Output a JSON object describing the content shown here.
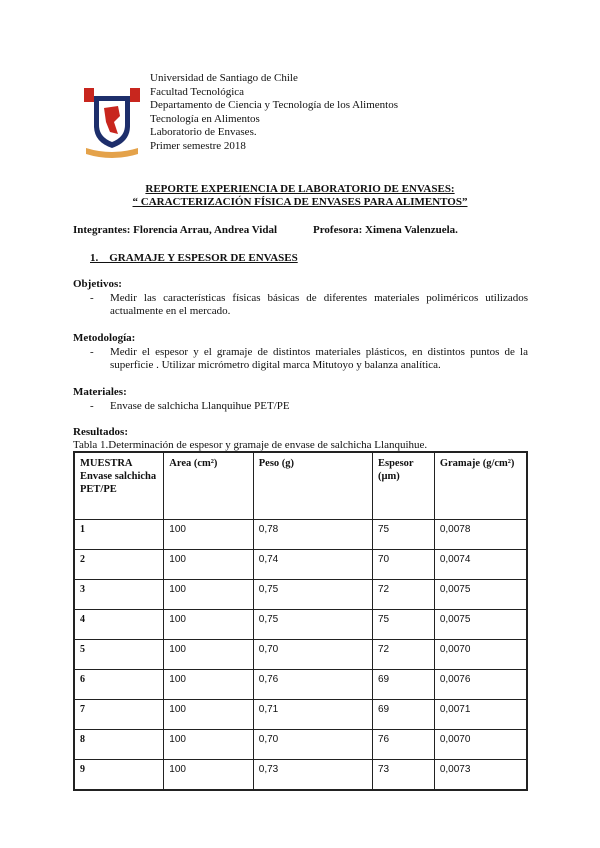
{
  "header": {
    "lines": [
      "Universidad de Santiago de Chile",
      "Facultad Tecnológica",
      "Departamento de Ciencia y Tecnología de los Alimentos",
      "Tecnología en Alimentos",
      "Laboratorio de Envases.",
      "Primer semestre 2018"
    ]
  },
  "title": {
    "line1": "REPORTE  EXPERIENCIA DE LABORATORIO DE ENVASES:",
    "line2": "“ CARACTERIZACIÓN FÍSICA DE ENVASES PARA ALIMENTOS”"
  },
  "integrantes": "Integrantes: Florencia Arrau, Andrea Vidal",
  "profesora": "Profesora: Ximena Valenzuela.",
  "section1": "1.    GRAMAJE Y ESPESOR DE ENVASES",
  "objetivos": {
    "label": "Objetivos:",
    "item": "Medir las características físicas básicas de diferentes materiales poliméricos utilizados actualmente en el mercado."
  },
  "metodologia": {
    "label": "Metodología:",
    "item": "Medir el espesor y el gramaje de distintos materiales plásticos, en distintos puntos de la superficie . Utilizar micrómetro digital marca Mitutoyo y balanza analítica."
  },
  "materiales": {
    "label": "Materiales:",
    "item": "Envase de salchicha Llanquihue PET/PE"
  },
  "resultados": {
    "label": "Resultados:",
    "caption": "Tabla 1.Determinación de espesor y gramaje de envase de salchicha Llanquihue."
  },
  "table": {
    "headers": [
      "MUESTRA Envase salchicha PET/PE",
      "Area (cm²)",
      "Peso (g)",
      "Espesor (µm)",
      "Gramaje (g/cm²)"
    ],
    "rows": [
      [
        "1",
        "100",
        "0,78",
        "75",
        "0,0078"
      ],
      [
        "2",
        "100",
        "0,74",
        "70",
        "0,0074"
      ],
      [
        "3",
        "100",
        "0,75",
        "72",
        "0,0075"
      ],
      [
        "4",
        "100",
        "0,75",
        "75",
        "0,0075"
      ],
      [
        "5",
        "100",
        "0,70",
        "72",
        "0,0070"
      ],
      [
        "6",
        "100",
        "0,76",
        "69",
        "0,0076"
      ],
      [
        "7",
        "100",
        "0,71",
        "69",
        "0,0071"
      ],
      [
        "8",
        "100",
        "0,70",
        "76",
        "0,0070"
      ],
      [
        "9",
        "100",
        "0,73",
        "73",
        "0,0073"
      ]
    ]
  },
  "dash": "-"
}
